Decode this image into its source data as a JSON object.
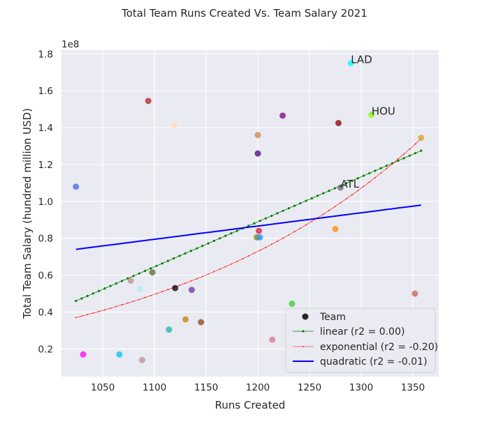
{
  "chart_data": {
    "type": "scatter",
    "title": "Total Team Runs Created Vs. Team Salary 2021",
    "xlabel": "Runs Created",
    "ylabel": "Total Team Salary (hundred million USD)",
    "y_multiplier": "1e8",
    "xlim": [
      1010,
      1375
    ],
    "ylim": [
      0.05,
      1.82
    ],
    "x_ticks": [
      1050,
      1100,
      1150,
      1200,
      1250,
      1300,
      1350
    ],
    "y_ticks": [
      0.2,
      0.4,
      0.6,
      0.8,
      1.0,
      1.2,
      1.4,
      1.6,
      1.8
    ],
    "grid": true,
    "legend_position": "lower-right",
    "legend": [
      "Team",
      "linear (r2 = 0.00)",
      "exponential (r2 = -0.20)",
      "quadratic (r2 = -0.01)"
    ],
    "points": [
      {
        "x": 1024,
        "y": 1.08,
        "color": "#4169e1"
      },
      {
        "x": 1031,
        "y": 0.17,
        "color": "#ff00ff"
      },
      {
        "x": 1066,
        "y": 0.17,
        "color": "#00bfff"
      },
      {
        "x": 1077,
        "y": 0.57,
        "color": "#bc8f8f"
      },
      {
        "x": 1086,
        "y": 0.525,
        "color": "#afeeee"
      },
      {
        "x": 1088,
        "y": 0.14,
        "color": "#bc8f8f"
      },
      {
        "x": 1094,
        "y": 1.545,
        "color": "#b22222"
      },
      {
        "x": 1098,
        "y": 0.615,
        "color": "#556b2f"
      },
      {
        "x": 1114,
        "y": 0.305,
        "color": "#20b2aa"
      },
      {
        "x": 1119,
        "y": 1.415,
        "color": "#ffdab9"
      },
      {
        "x": 1120,
        "y": 0.53,
        "color": "#000000"
      },
      {
        "x": 1130,
        "y": 0.36,
        "color": "#b8860b"
      },
      {
        "x": 1136,
        "y": 0.52,
        "color": "#663399"
      },
      {
        "x": 1145,
        "y": 0.345,
        "color": "#8b4513"
      },
      {
        "x": 1199,
        "y": 0.805,
        "color": "#808000"
      },
      {
        "x": 1200,
        "y": 1.26,
        "color": "#4b0082"
      },
      {
        "x": 1200,
        "y": 1.36,
        "color": "#cd853f"
      },
      {
        "x": 1201,
        "y": 0.84,
        "color": "#dc143c"
      },
      {
        "x": 1202,
        "y": 0.805,
        "color": "#1e90ff"
      },
      {
        "x": 1214,
        "y": 0.25,
        "color": "#db7093"
      },
      {
        "x": 1224,
        "y": 1.465,
        "color": "#800080"
      },
      {
        "x": 1233,
        "y": 0.445,
        "color": "#32cd32"
      },
      {
        "x": 1275,
        "y": 0.85,
        "color": "#ff8c00"
      },
      {
        "x": 1278,
        "y": 1.425,
        "color": "#8b0000"
      },
      {
        "x": 1280,
        "y": 1.075,
        "color": "#696969"
      },
      {
        "x": 1290,
        "y": 1.75,
        "color": "#00ffff"
      },
      {
        "x": 1310,
        "y": 1.47,
        "color": "#7cfc00"
      },
      {
        "x": 1352,
        "y": 0.5,
        "color": "#cd5c5c"
      },
      {
        "x": 1358,
        "y": 1.345,
        "color": "#daa520"
      }
    ],
    "annotations": [
      {
        "text": "LAD",
        "x": 1290,
        "y": 1.75
      },
      {
        "text": "HOU",
        "x": 1310,
        "y": 1.47
      },
      {
        "text": "ATL",
        "x": 1280,
        "y": 1.075
      }
    ],
    "series": [
      {
        "name": "linear (r2 = 0.00)",
        "kind": "linear",
        "color": "#008000",
        "x_range": [
          1024,
          1358
        ],
        "y_range": [
          0.46,
          1.275
        ]
      },
      {
        "name": "exponential (r2 = -0.20)",
        "kind": "exponential",
        "color": "#ff0000",
        "x_range": [
          1024,
          1358
        ],
        "y_range": [
          0.37,
          1.34
        ]
      },
      {
        "name": "quadratic (r2 = -0.01)",
        "kind": "quadratic",
        "color": "#0000ff",
        "x_range": [
          1024,
          1358
        ],
        "y_range": [
          0.74,
          0.98
        ]
      }
    ]
  }
}
